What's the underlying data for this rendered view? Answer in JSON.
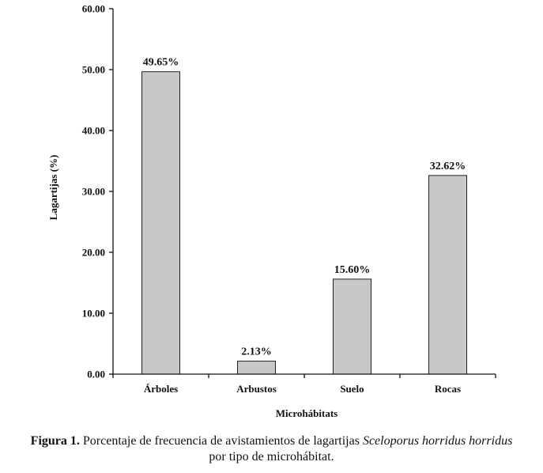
{
  "chart_data": {
    "type": "bar",
    "categories": [
      "Árboles",
      "Arbustos",
      "Suelo",
      "Rocas"
    ],
    "values": [
      49.65,
      2.13,
      15.6,
      32.62
    ],
    "data_labels": [
      "49.65%",
      "2.13%",
      "15.60%",
      "32.62%"
    ],
    "xlabel": "Microhábitats",
    "ylabel": "Lagartijas (%)",
    "ylim": [
      0,
      60
    ],
    "yticks": [
      "0.00",
      "10.00",
      "20.00",
      "30.00",
      "40.00",
      "50.00",
      "60.00"
    ],
    "grid": false,
    "bar_color": "#c8c8c8"
  },
  "caption": {
    "label": "Figura 1.",
    "text_before": " Porcentaje de frecuencia de avistamientos de lagartijas ",
    "species": "Sceloporus horridus horridus",
    "line2": "por tipo de microhábitat."
  }
}
